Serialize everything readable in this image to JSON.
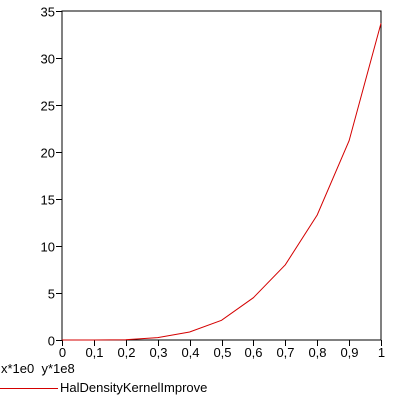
{
  "chart_data": {
    "type": "line",
    "title": "",
    "xlabel": "",
    "ylabel": "",
    "scale_note": "x*1e0  y*1e8",
    "xlim": [
      0,
      1
    ],
    "ylim": [
      0,
      35
    ],
    "x_tick_labels": [
      "0",
      "0,1",
      "0,2",
      "0,3",
      "0,4",
      "0,5",
      "0,6",
      "0,7",
      "0,8",
      "0,9",
      "1"
    ],
    "y_tick_labels": [
      "0",
      "5",
      "10",
      "15",
      "20",
      "25",
      "30",
      "35"
    ],
    "grid": false,
    "legend_position": "bottom-left",
    "series": [
      {
        "name": "HalDensityKernelImprove",
        "color": "#d40000",
        "x": [
          0,
          0.1,
          0.2,
          0.3,
          0.4,
          0.5,
          0.6,
          0.7,
          0.8,
          0.9,
          1.0
        ],
        "y": [
          0,
          0,
          0.03,
          0.25,
          0.85,
          2.1,
          4.5,
          8.0,
          13.3,
          21.2,
          33.7
        ]
      }
    ]
  }
}
